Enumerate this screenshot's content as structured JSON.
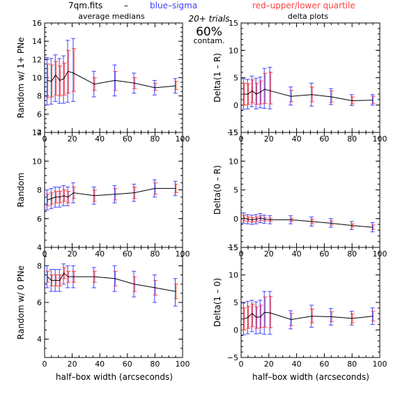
{
  "header": {
    "file_label": "7qm.fits",
    "dash": "–",
    "sigma_label": "blue–sigma",
    "quartile_label": "red–upper/lower quartile",
    "sigma_color": "#4040ff",
    "quartile_color": "#ff4040"
  },
  "center_note": {
    "trials": "20+ trials",
    "percent": "60%",
    "contam": "contam."
  },
  "column_titles": {
    "left": "average medians",
    "right": "delta plots"
  },
  "xlabel": "half–box width (arcseconds)",
  "chart_data": [
    {
      "type": "line",
      "ylabel": "Random w/ 1+ PNe",
      "xlim": [
        0,
        100
      ],
      "ylim": [
        4,
        16
      ],
      "xticks": [
        0,
        20,
        40,
        60,
        80,
        100
      ],
      "yticks": [
        4,
        6,
        8,
        10,
        12,
        14,
        16
      ],
      "x": [
        2,
        5,
        8,
        11,
        14,
        17,
        21,
        36,
        51,
        65,
        80,
        95
      ],
      "y": [
        9.7,
        9.6,
        10.3,
        9.7,
        9.9,
        10.7,
        10.5,
        9.3,
        9.7,
        9.4,
        8.9,
        9.1
      ],
      "sigma_lo": [
        7.0,
        7.1,
        7.4,
        7.2,
        7.2,
        7.3,
        7.4,
        7.9,
        8.0,
        8.3,
        8.1,
        8.3
      ],
      "sigma_hi": [
        12.2,
        12.1,
        12.5,
        12.1,
        12.4,
        14.1,
        14.3,
        10.7,
        11.4,
        10.5,
        9.7,
        9.9
      ],
      "quartile_lo": [
        7.8,
        7.9,
        8.1,
        8.0,
        8.1,
        8.3,
        8.5,
        8.6,
        8.6,
        8.8,
        8.6,
        8.7
      ],
      "quartile_hi": [
        11.5,
        11.4,
        11.8,
        11.3,
        11.6,
        13.0,
        13.2,
        10.0,
        10.7,
        10.0,
        9.4,
        9.6
      ]
    },
    {
      "type": "line",
      "ylabel": "Delta(1 – R)",
      "xlim": [
        0,
        100
      ],
      "ylim": [
        -5,
        15
      ],
      "xticks": [
        0,
        20,
        40,
        60,
        80,
        100
      ],
      "yticks": [
        -5,
        0,
        5,
        10,
        15
      ],
      "x": [
        2,
        5,
        8,
        11,
        14,
        17,
        21,
        36,
        51,
        65,
        80,
        95
      ],
      "y": [
        2.0,
        2.0,
        2.6,
        2.0,
        2.4,
        2.9,
        2.6,
        1.6,
        1.9,
        1.5,
        0.8,
        0.9
      ],
      "sigma_lo": [
        -0.8,
        -0.7,
        -0.3,
        -0.7,
        -0.5,
        -0.6,
        -0.7,
        0.0,
        -0.2,
        0.1,
        -0.1,
        0.0
      ],
      "sigma_hi": [
        4.8,
        4.7,
        5.3,
        4.9,
        5.1,
        6.7,
        6.9,
        3.3,
        4.0,
        3.0,
        1.9,
        1.9
      ],
      "quartile_lo": [
        0.0,
        0.1,
        0.4,
        0.1,
        0.2,
        0.3,
        0.2,
        0.6,
        0.6,
        0.5,
        0.2,
        0.3
      ],
      "quartile_hi": [
        4.0,
        3.9,
        4.6,
        4.0,
        4.4,
        5.8,
        6.0,
        2.7,
        3.3,
        2.6,
        1.5,
        1.6
      ]
    },
    {
      "type": "line",
      "ylabel": "Random",
      "xlim": [
        0,
        100
      ],
      "ylim": [
        4,
        12
      ],
      "xticks": [
        0,
        20,
        40,
        60,
        80,
        100
      ],
      "yticks": [
        4,
        6,
        8,
        10,
        12
      ],
      "x": [
        2,
        5,
        8,
        11,
        14,
        17,
        21,
        36,
        51,
        65,
        80,
        95
      ],
      "y": [
        7.3,
        7.4,
        7.5,
        7.5,
        7.6,
        7.5,
        7.8,
        7.6,
        7.7,
        7.8,
        8.1,
        8.1
      ],
      "sigma_lo": [
        6.6,
        6.7,
        6.8,
        6.8,
        6.9,
        6.9,
        7.1,
        7.0,
        7.1,
        7.2,
        7.5,
        7.6
      ],
      "sigma_hi": [
        8.0,
        8.1,
        8.2,
        8.2,
        8.3,
        8.2,
        8.5,
        8.2,
        8.3,
        8.4,
        8.7,
        8.6
      ],
      "quartile_lo": [
        6.9,
        7.0,
        7.1,
        7.1,
        7.2,
        7.1,
        7.4,
        7.2,
        7.3,
        7.4,
        7.7,
        7.8
      ],
      "quartile_hi": [
        7.7,
        7.8,
        7.9,
        7.9,
        8.0,
        7.9,
        8.2,
        8.0,
        8.1,
        8.2,
        8.5,
        8.4
      ]
    },
    {
      "type": "line",
      "ylabel": "Delta(0 – R)",
      "xlim": [
        0,
        100
      ],
      "ylim": [
        -5,
        15
      ],
      "xticks": [
        0,
        20,
        40,
        60,
        80,
        100
      ],
      "yticks": [
        -5,
        0,
        5,
        10,
        15
      ],
      "x": [
        2,
        5,
        8,
        11,
        14,
        17,
        21,
        36,
        51,
        65,
        80,
        95
      ],
      "y": [
        0.1,
        -0.1,
        -0.2,
        -0.1,
        0.1,
        -0.1,
        -0.2,
        -0.2,
        -0.5,
        -0.8,
        -1.2,
        -1.5
      ],
      "sigma_lo": [
        -0.8,
        -0.9,
        -1.0,
        -0.9,
        -0.7,
        -0.8,
        -0.9,
        -0.9,
        -1.3,
        -1.5,
        -1.9,
        -2.3
      ],
      "sigma_hi": [
        1.0,
        0.7,
        0.6,
        0.7,
        0.9,
        0.6,
        0.5,
        0.5,
        0.3,
        0.0,
        -0.5,
        -0.7
      ],
      "quartile_lo": [
        -0.4,
        -0.5,
        -0.6,
        -0.5,
        -0.3,
        -0.4,
        -0.5,
        -0.5,
        -0.9,
        -1.1,
        -1.5,
        -1.9
      ],
      "quartile_hi": [
        0.6,
        0.3,
        0.2,
        0.3,
        0.5,
        0.2,
        0.1,
        0.1,
        -0.1,
        -0.4,
        -0.9,
        -1.1
      ]
    },
    {
      "type": "line",
      "ylabel": "Random w/ 0 PNe",
      "xlim": [
        0,
        100
      ],
      "ylim": [
        3,
        9
      ],
      "xticks": [
        0,
        20,
        40,
        60,
        80,
        100
      ],
      "yticks": [
        4,
        6,
        8
      ],
      "x": [
        2,
        5,
        8,
        11,
        14,
        17,
        21,
        36,
        51,
        65,
        80,
        95
      ],
      "y": [
        7.4,
        7.2,
        7.2,
        7.2,
        7.6,
        7.4,
        7.4,
        7.4,
        7.3,
        7.0,
        6.8,
        6.6
      ],
      "sigma_lo": [
        6.8,
        6.6,
        6.6,
        6.6,
        7.0,
        6.8,
        6.8,
        6.8,
        6.6,
        6.3,
        6.0,
        5.8
      ],
      "sigma_hi": [
        8.0,
        7.8,
        7.8,
        7.8,
        8.1,
        8.0,
        8.0,
        7.9,
        8.0,
        7.7,
        7.5,
        7.3
      ],
      "quartile_lo": [
        7.1,
        6.9,
        6.9,
        6.9,
        7.3,
        7.1,
        7.1,
        7.1,
        6.9,
        6.6,
        6.4,
        6.2
      ],
      "quartile_hi": [
        7.7,
        7.5,
        7.5,
        7.5,
        7.9,
        7.7,
        7.7,
        7.7,
        7.7,
        7.4,
        7.2,
        7.0
      ]
    },
    {
      "type": "line",
      "ylabel": "Delta(1 – 0)",
      "xlim": [
        0,
        100
      ],
      "ylim": [
        -5,
        15
      ],
      "xticks": [
        0,
        20,
        40,
        60,
        80,
        100
      ],
      "yticks": [
        -5,
        0,
        5,
        10,
        15
      ],
      "x": [
        2,
        5,
        8,
        11,
        14,
        17,
        21,
        36,
        51,
        65,
        80,
        95
      ],
      "y": [
        2.0,
        2.3,
        3.0,
        2.3,
        2.4,
        3.2,
        3.1,
        1.9,
        2.5,
        2.4,
        2.1,
        2.5
      ],
      "sigma_lo": [
        -0.9,
        -0.7,
        -0.3,
        -0.7,
        -0.6,
        -0.8,
        -0.8,
        0.2,
        0.5,
        0.9,
        0.9,
        1.0
      ],
      "sigma_hi": [
        4.9,
        5.2,
        5.4,
        5.1,
        5.4,
        7.0,
        7.0,
        3.5,
        4.5,
        3.9,
        3.4,
        4.0
      ],
      "quartile_lo": [
        0.0,
        0.3,
        0.6,
        0.3,
        0.4,
        0.5,
        0.4,
        0.8,
        1.3,
        1.5,
        1.3,
        1.6
      ],
      "quartile_hi": [
        4.0,
        4.3,
        4.7,
        4.2,
        4.5,
        6.0,
        6.1,
        3.0,
        3.8,
        3.3,
        2.9,
        3.4
      ]
    }
  ]
}
